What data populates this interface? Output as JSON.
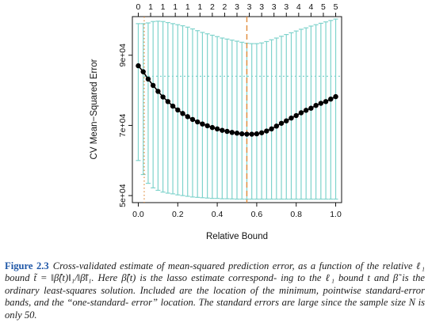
{
  "chart_data": {
    "type": "line",
    "xlabel": "Relative Bound",
    "ylabel": "CV Mean−Squared Error",
    "xlim": [
      -0.03,
      1.03
    ],
    "ylim": [
      48000,
      101000
    ],
    "x_ticks": [
      "0.0",
      "0.2",
      "0.4",
      "0.6",
      "0.8",
      "1.0"
    ],
    "x_tick_values": [
      0,
      0.2,
      0.4,
      0.6,
      0.8,
      1.0
    ],
    "y_ticks": [
      "5e+04",
      "7e+04",
      "9e+04"
    ],
    "y_tick_values": [
      50000,
      70000,
      90000
    ],
    "top_axis_ticks": [
      "0",
      "1",
      "1",
      "1",
      "1",
      "1",
      "2",
      "2",
      "3",
      "3",
      "3",
      "3",
      "3",
      "4",
      "4",
      "5",
      "5"
    ],
    "top_axis_tick_x": [
      0,
      0.0625,
      0.125,
      0.1875,
      0.25,
      0.3125,
      0.375,
      0.4375,
      0.5,
      0.5625,
      0.625,
      0.6875,
      0.75,
      0.8125,
      0.875,
      0.9375,
      1.0
    ],
    "x": [
      0,
      0.025,
      0.05,
      0.075,
      0.1,
      0.125,
      0.15,
      0.175,
      0.2,
      0.225,
      0.25,
      0.275,
      0.3,
      0.325,
      0.35,
      0.375,
      0.4,
      0.425,
      0.45,
      0.475,
      0.5,
      0.525,
      0.55,
      0.575,
      0.6,
      0.625,
      0.65,
      0.675,
      0.7,
      0.725,
      0.75,
      0.775,
      0.8,
      0.825,
      0.85,
      0.875,
      0.9,
      0.925,
      0.95,
      0.975,
      1.0
    ],
    "series": [
      {
        "values": [
          87000,
          85300,
          83200,
          81400,
          79700,
          78100,
          76800,
          75500,
          74400,
          73400,
          72500,
          71700,
          71000,
          70400,
          69900,
          69400,
          69000,
          68600,
          68300,
          68000,
          67800,
          67600,
          67500,
          67500,
          67600,
          67900,
          68400,
          69000,
          69800,
          70600,
          71300,
          72100,
          72800,
          73600,
          74300,
          74900,
          75700,
          76300,
          76800,
          77500,
          78200
        ],
        "err_lo": [
          60000,
          56000,
          53500,
          52200,
          51500,
          51000,
          50700,
          50500,
          50200,
          50000,
          49800,
          49600,
          49500,
          49400,
          49300,
          49200,
          49200,
          49100,
          49100,
          49050,
          49000,
          49000,
          49000,
          49000,
          49000,
          49000,
          49000,
          49000,
          49000,
          49000,
          49000,
          49000,
          49000,
          49000,
          49000,
          49000,
          49000,
          49000,
          49000,
          49000,
          49000
        ],
        "err_hi": [
          99000,
          99000,
          99200,
          99600,
          99700,
          99600,
          99300,
          99000,
          98700,
          98400,
          98000,
          97500,
          97000,
          96500,
          96100,
          95700,
          95300,
          94900,
          94600,
          94300,
          94000,
          93700,
          93400,
          93300,
          93300,
          93500,
          93900,
          94400,
          94900,
          95400,
          95900,
          96400,
          96900,
          97400,
          97800,
          98300,
          98700,
          99100,
          99500,
          99900,
          100300
        ]
      }
    ],
    "min_cv_x": 0.55,
    "one_se_x": 0.03,
    "one_se_level": 84000,
    "colors": {
      "points": "#000000",
      "error_bars": "#7fd3cc",
      "min_line": "#e08b3a",
      "one_se_line": "#e08b3a",
      "hline": "#7fd3cc"
    }
  },
  "caption": {
    "label": "Figure",
    "number": "2.3",
    "lines": [
      "Cross-validated estimate of mean-squared prediction error, as a function",
      "of the relative ℓ₁ bound t̃ = ‖β̂(t)‖₁/‖β̃‖₁. Here β̂(t) is the lasso estimate correspond-",
      "ing to the ℓ₁ bound t and β̃ is the ordinary least-squares solution. Included are the",
      "location of the minimum, pointwise standard-error bands, and the “one-standard-",
      "error” location. The standard errors are large since the sample size N is only 50."
    ]
  }
}
